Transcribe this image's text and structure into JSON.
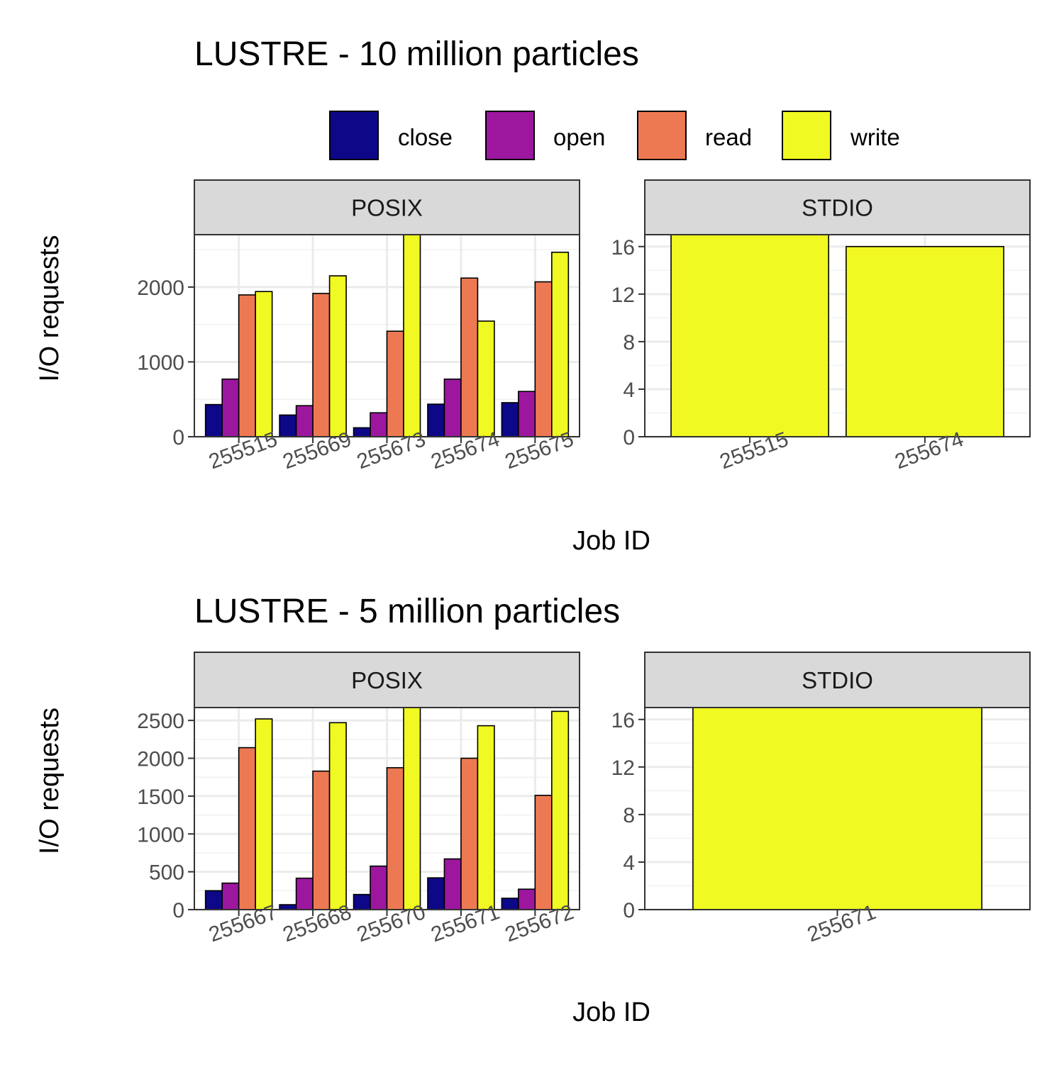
{
  "legend": {
    "items": [
      {
        "label": "close",
        "color": "#0d0887"
      },
      {
        "label": "open",
        "color": "#9c179e"
      },
      {
        "label": "read",
        "color": "#ed7953"
      },
      {
        "label": "write",
        "color": "#f0f921"
      }
    ]
  },
  "chart_data": [
    {
      "type": "bar",
      "title": "LUSTRE - 10 million particles",
      "xlabel": "Job ID",
      "ylabel": "I/O requests",
      "facets": [
        {
          "label": "POSIX",
          "categories": [
            "255515",
            "255669",
            "255673",
            "255674",
            "255675"
          ],
          "ylim": [
            0,
            2700
          ],
          "yticks": [
            0,
            1000,
            2000
          ],
          "series": [
            {
              "name": "close",
              "values": [
                430,
                290,
                120,
                435,
                455
              ]
            },
            {
              "name": "open",
              "values": [
                770,
                415,
                320,
                770,
                605
              ]
            },
            {
              "name": "read",
              "values": [
                1895,
                1915,
                1410,
                2120,
                2070
              ]
            },
            {
              "name": "write",
              "values": [
                1940,
                2150,
                2700,
                1545,
                2465
              ]
            }
          ]
        },
        {
          "label": "STDIO",
          "categories": [
            "255515",
            "255674"
          ],
          "ylim": [
            0,
            17
          ],
          "yticks": [
            0,
            4,
            8,
            12,
            16
          ],
          "series": [
            {
              "name": "write",
              "values": [
                17,
                16
              ]
            }
          ]
        }
      ]
    },
    {
      "type": "bar",
      "title": "LUSTRE - 5 million particles",
      "xlabel": "Job ID",
      "ylabel": "I/O requests",
      "facets": [
        {
          "label": "POSIX",
          "categories": [
            "255667",
            "255668",
            "255670",
            "255671",
            "255672"
          ],
          "ylim": [
            0,
            2670
          ],
          "yticks": [
            0,
            500,
            1000,
            1500,
            2000,
            2500
          ],
          "series": [
            {
              "name": "close",
              "values": [
                250,
                65,
                200,
                420,
                150
              ]
            },
            {
              "name": "open",
              "values": [
                350,
                415,
                575,
                670,
                270
              ]
            },
            {
              "name": "read",
              "values": [
                2140,
                1830,
                1875,
                2000,
                1510
              ]
            },
            {
              "name": "write",
              "values": [
                2520,
                2470,
                2670,
                2430,
                2620
              ]
            }
          ]
        },
        {
          "label": "STDIO",
          "categories": [
            "255671"
          ],
          "ylim": [
            0,
            17
          ],
          "yticks": [
            0,
            4,
            8,
            12,
            16
          ],
          "series": [
            {
              "name": "write",
              "values": [
                17
              ]
            }
          ]
        }
      ]
    }
  ]
}
